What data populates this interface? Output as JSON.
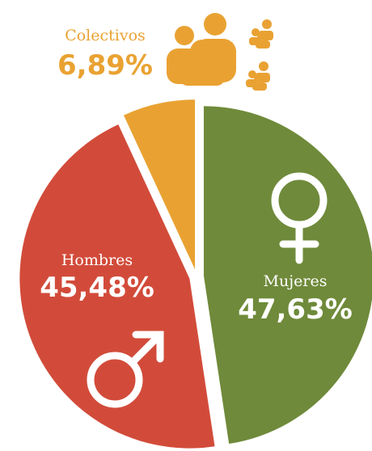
{
  "chart_data": {
    "type": "pie",
    "categories": [
      "Mujeres",
      "Hombres",
      "Colectivos"
    ],
    "values": [
      47.63,
      45.48,
      6.89
    ],
    "value_labels": [
      "47,63%",
      "45,48%",
      "6,89%"
    ],
    "colors": [
      "#6f8a3a",
      "#d24b3a",
      "#e9a232"
    ]
  }
}
